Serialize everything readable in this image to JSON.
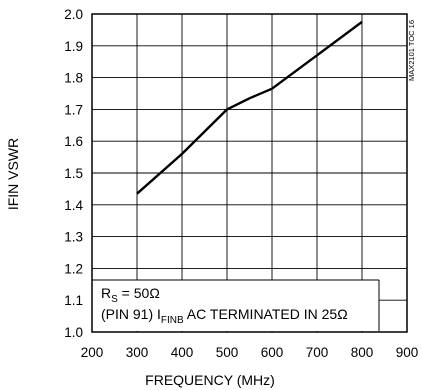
{
  "chart_data": {
    "type": "line",
    "xlabel": "FREQUENCY (MHz)",
    "ylabel": "IFIN VSWR",
    "xlim": [
      200,
      900
    ],
    "ylim": [
      1.0,
      2.0
    ],
    "x_ticks": [
      "200",
      "300",
      "400",
      "500",
      "600",
      "700",
      "800",
      "900"
    ],
    "y_ticks": [
      "1.0",
      "1.1",
      "1.2",
      "1.3",
      "1.4",
      "1.5",
      "1.6",
      "1.7",
      "1.8",
      "1.9",
      "2.0"
    ],
    "grid": true,
    "series": [
      {
        "x": [
          300,
          400,
          500,
          550,
          600,
          700,
          800
        ],
        "y": [
          1.435,
          1.56,
          1.7,
          1.735,
          1.765,
          1.87,
          1.975
        ]
      }
    ],
    "annotations": {
      "line1_main": "R",
      "line1_sub": "S",
      "line1_rest": " = 50Ω",
      "line2_main": "(PIN 91) I",
      "line2_sub": "FINB",
      "line2_rest": " AC TERMINATED IN 25Ω"
    },
    "side_id": "MAX2101 TOC 16"
  }
}
